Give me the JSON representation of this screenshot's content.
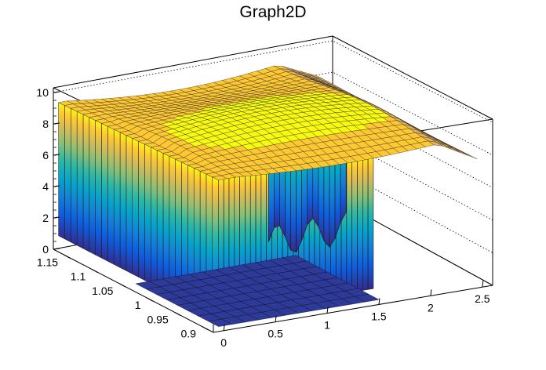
{
  "chart_data": {
    "type": "surface",
    "title": "Graph2D",
    "x_ticks": [
      "0",
      "0.5",
      "1",
      "1.5",
      "2",
      "2.5"
    ],
    "y_ticks": [
      "0.9",
      "0.95",
      "1",
      "1.05",
      "1.1",
      "1.15"
    ],
    "z_ticks": [
      "0",
      "2",
      "4",
      "6",
      "8",
      "10"
    ],
    "xlim": [
      -0.1,
      2.6
    ],
    "ylim": [
      0.88,
      1.17
    ],
    "zlim": [
      0,
      10.3
    ],
    "grid": true,
    "palette": [
      "#352a87",
      "#0f5cdd",
      "#1481d6",
      "#06a4ca",
      "#2eb7a4",
      "#87bf77",
      "#d1bb59",
      "#fec832",
      "#f9fb0e"
    ],
    "surface": {
      "description_of_values": "z rises from about 6 at x=0 to a plateau near 9-10, dropping where the data are absent (x>1.5, low y region), walls drawn to z=0 along the front edges",
      "x_range": [
        -0.1,
        2.6
      ],
      "y_range": [
        0.88,
        1.17
      ],
      "z_plateau": 9.5,
      "z_low_edge": 6
    }
  }
}
